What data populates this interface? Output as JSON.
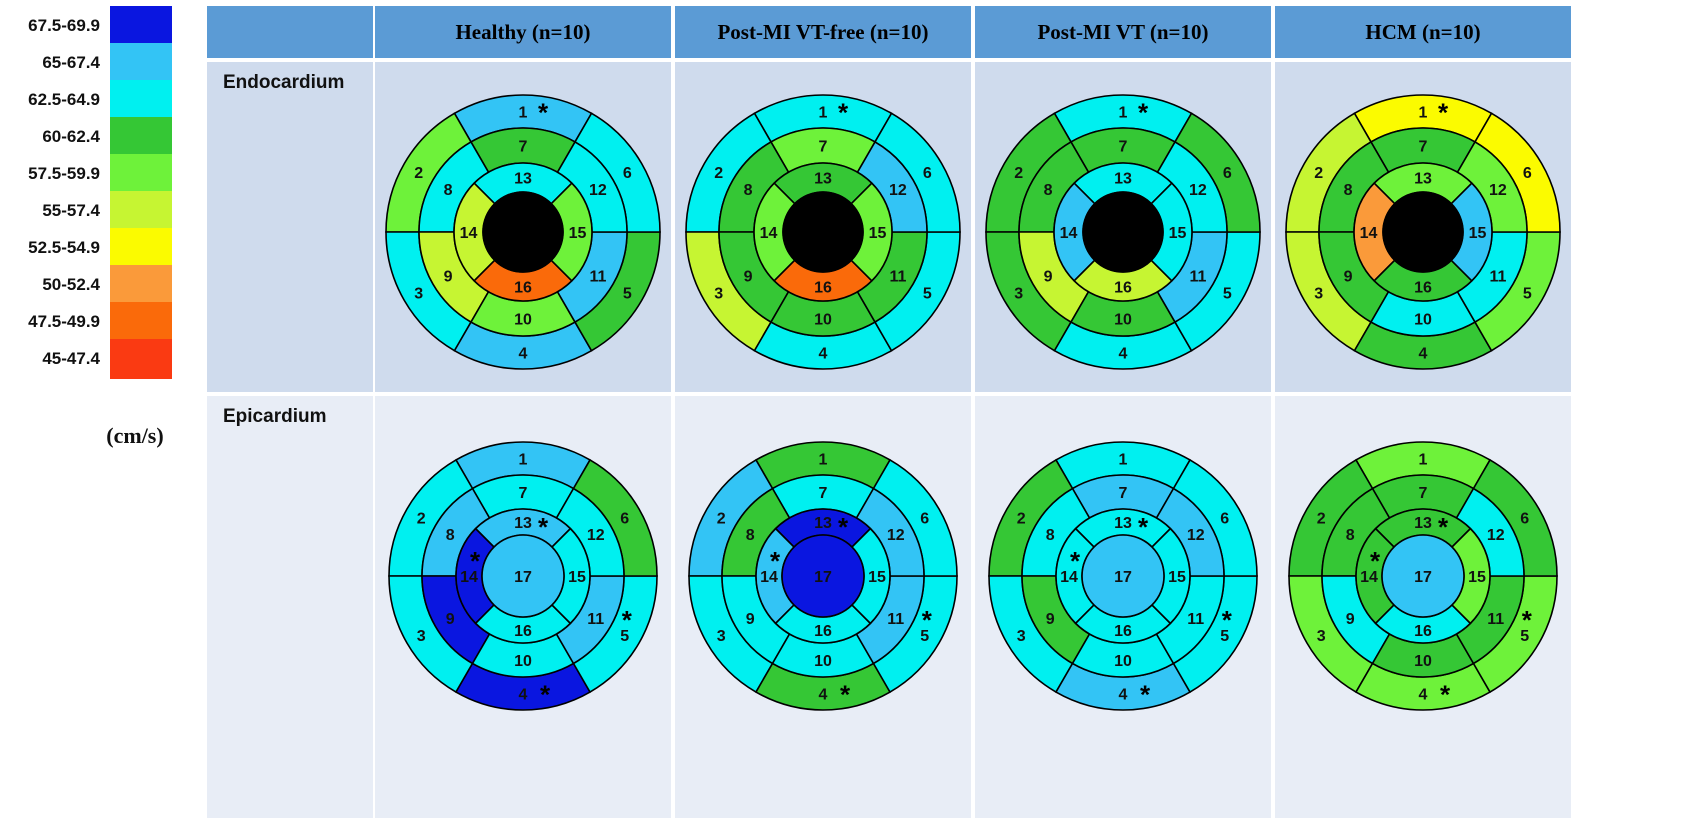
{
  "legend": {
    "entries": [
      {
        "label": "67.5-69.9",
        "color": "#0a16e0"
      },
      {
        "label": "65-67.4",
        "color": "#33c4f5"
      },
      {
        "label": "62.5-64.9",
        "color": "#00f0f0"
      },
      {
        "label": "60-62.4",
        "color": "#35c735"
      },
      {
        "label": "57.5-59.9",
        "color": "#6ef23a"
      },
      {
        "label": "55-57.4",
        "color": "#c6f532"
      },
      {
        "label": "52.5-54.9",
        "color": "#fbfb00"
      },
      {
        "label": "50-52.4",
        "color": "#fa9a3a"
      },
      {
        "label": "47.5-49.9",
        "color": "#fa6a0a"
      },
      {
        "label": "45-47.4",
        "color": "#fa3a12"
      }
    ],
    "unit": "(cm/s)"
  },
  "columns": [
    {
      "label": "Healthy (n=10)"
    },
    {
      "label": "Post-MI VT-free (n=10)"
    },
    {
      "label": "Post-MI VT (n=10)"
    },
    {
      "label": "HCM (n=10)"
    }
  ],
  "rows": [
    {
      "label": "Endocardium",
      "plots": [
        {
          "segments": {
            "1": "#33c4f5",
            "2": "#6ef23a",
            "3": "#00f0f0",
            "4": "#33c4f5",
            "5": "#35c735",
            "6": "#00f0f0",
            "7": "#35c735",
            "8": "#00f0f0",
            "9": "#c6f532",
            "10": "#6ef23a",
            "11": "#33c4f5",
            "12": "#00f0f0",
            "13": "#00f0f0",
            "14": "#c6f532",
            "15": "#6ef23a",
            "16": "#fa6a0a",
            "17": "#000000"
          },
          "stars": [
            "1"
          ]
        },
        {
          "segments": {
            "1": "#00f0f0",
            "2": "#00f0f0",
            "3": "#c6f532",
            "4": "#00f0f0",
            "5": "#00f0f0",
            "6": "#00f0f0",
            "7": "#6ef23a",
            "8": "#35c735",
            "9": "#35c735",
            "10": "#35c735",
            "11": "#35c735",
            "12": "#33c4f5",
            "13": "#35c735",
            "14": "#6ef23a",
            "15": "#6ef23a",
            "16": "#fa6a0a",
            "17": "#000000"
          },
          "stars": [
            "1"
          ]
        },
        {
          "segments": {
            "1": "#00f0f0",
            "2": "#35c735",
            "3": "#35c735",
            "4": "#00f0f0",
            "5": "#00f0f0",
            "6": "#35c735",
            "7": "#35c735",
            "8": "#35c735",
            "9": "#c6f532",
            "10": "#35c735",
            "11": "#33c4f5",
            "12": "#00f0f0",
            "13": "#00f0f0",
            "14": "#33c4f5",
            "15": "#00f0f0",
            "16": "#c6f532",
            "17": "#000000"
          },
          "stars": [
            "1"
          ]
        },
        {
          "segments": {
            "1": "#fbfb00",
            "2": "#c6f532",
            "3": "#c6f532",
            "4": "#35c735",
            "5": "#6ef23a",
            "6": "#fbfb00",
            "7": "#35c735",
            "8": "#35c735",
            "9": "#35c735",
            "10": "#00f0f0",
            "11": "#00f0f0",
            "12": "#6ef23a",
            "13": "#6ef23a",
            "14": "#fa9a3a",
            "15": "#33c4f5",
            "16": "#35c735",
            "17": "#000000"
          },
          "stars": [
            "1"
          ]
        }
      ]
    },
    {
      "label": "Epicardium",
      "plots": [
        {
          "segments": {
            "1": "#33c4f5",
            "2": "#00f0f0",
            "3": "#00f0f0",
            "4": "#0a16e0",
            "5": "#00f0f0",
            "6": "#35c735",
            "7": "#00f0f0",
            "8": "#33c4f5",
            "9": "#0a16e0",
            "10": "#00f0f0",
            "11": "#33c4f5",
            "12": "#00f0f0",
            "13": "#33c4f5",
            "14": "#0a16e0",
            "15": "#00f0f0",
            "16": "#00f0f0",
            "17": "#33c4f5"
          },
          "stars": [
            "4",
            "5",
            "13",
            "14"
          ]
        },
        {
          "segments": {
            "1": "#35c735",
            "2": "#33c4f5",
            "3": "#00f0f0",
            "4": "#35c735",
            "5": "#00f0f0",
            "6": "#00f0f0",
            "7": "#00f0f0",
            "8": "#35c735",
            "9": "#00f0f0",
            "10": "#00f0f0",
            "11": "#33c4f5",
            "12": "#33c4f5",
            "13": "#0a16e0",
            "14": "#33c4f5",
            "15": "#00f0f0",
            "16": "#00f0f0",
            "17": "#0a16e0"
          },
          "stars": [
            "4",
            "5",
            "13",
            "14"
          ]
        },
        {
          "segments": {
            "1": "#00f0f0",
            "2": "#35c735",
            "3": "#00f0f0",
            "4": "#33c4f5",
            "5": "#00f0f0",
            "6": "#00f0f0",
            "7": "#33c4f5",
            "8": "#00f0f0",
            "9": "#35c735",
            "10": "#00f0f0",
            "11": "#00f0f0",
            "12": "#33c4f5",
            "13": "#00f0f0",
            "14": "#00f0f0",
            "15": "#00f0f0",
            "16": "#00f0f0",
            "17": "#33c4f5"
          },
          "stars": [
            "4",
            "5",
            "13",
            "14"
          ]
        },
        {
          "segments": {
            "1": "#6ef23a",
            "2": "#35c735",
            "3": "#6ef23a",
            "4": "#6ef23a",
            "5": "#6ef23a",
            "6": "#35c735",
            "7": "#35c735",
            "8": "#35c735",
            "9": "#00f0f0",
            "10": "#35c735",
            "11": "#35c735",
            "12": "#00f0f0",
            "13": "#35c735",
            "14": "#35c735",
            "15": "#6ef23a",
            "16": "#00f0f0",
            "17": "#33c4f5"
          },
          "stars": [
            "4",
            "5",
            "13",
            "14"
          ]
        }
      ]
    }
  ]
}
